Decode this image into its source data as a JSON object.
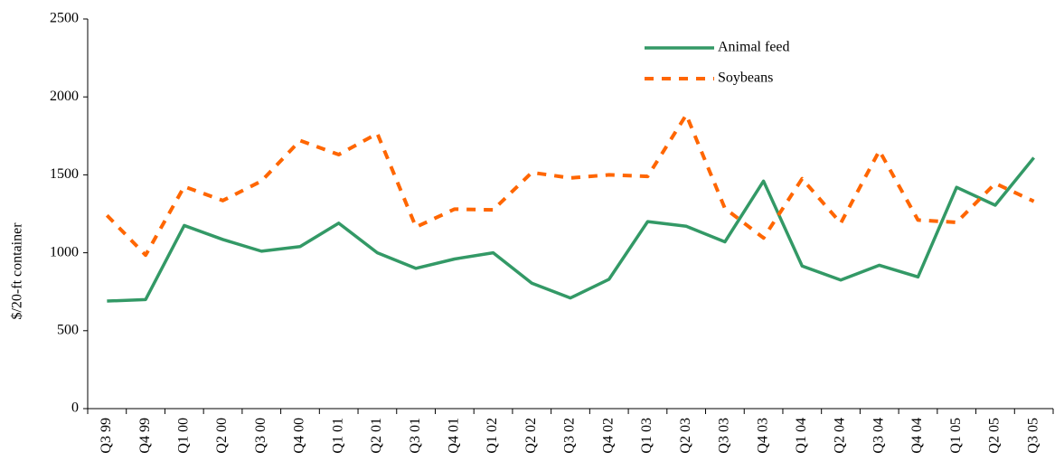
{
  "chart_data": {
    "type": "line",
    "y_axis_label": "$/20-ft container",
    "categories": [
      "Q3 99",
      "Q4 99",
      "Q1 00",
      "Q2 00",
      "Q3 00",
      "Q4 00",
      "Q1 01",
      "Q2 01",
      "Q3 01",
      "Q4 01",
      "Q1 02",
      "Q2 02",
      "Q3 02",
      "Q4 02",
      "Q1 03",
      "Q2 03",
      "Q3 03",
      "Q4 03",
      "Q1 04",
      "Q2 04",
      "Q3 04",
      "Q4 04",
      "Q1 05",
      "Q2 05",
      "Q3 05"
    ],
    "series": [
      {
        "name": "Animal feed",
        "color": "#339966",
        "dash": "solid",
        "values": [
          690,
          700,
          1175,
          1085,
          1010,
          1040,
          1190,
          1000,
          900,
          960,
          1000,
          805,
          710,
          830,
          1200,
          1170,
          1070,
          1460,
          915,
          825,
          920,
          845,
          1420,
          1305,
          1610
        ]
      },
      {
        "name": "Soybeans",
        "color": "#ff6600",
        "dash": "dashed",
        "values": [
          1240,
          985,
          1425,
          1335,
          1460,
          1720,
          1630,
          1765,
          1165,
          1280,
          1275,
          1515,
          1480,
          1500,
          1490,
          1885,
          1285,
          1095,
          1475,
          1190,
          1655,
          1210,
          1195,
          1445,
          1330
        ]
      }
    ],
    "ylim": [
      0,
      2500
    ],
    "yticks": [
      0,
      500,
      1000,
      1500,
      2000,
      2500
    ],
    "grid": false,
    "legend_position": "upper right"
  }
}
